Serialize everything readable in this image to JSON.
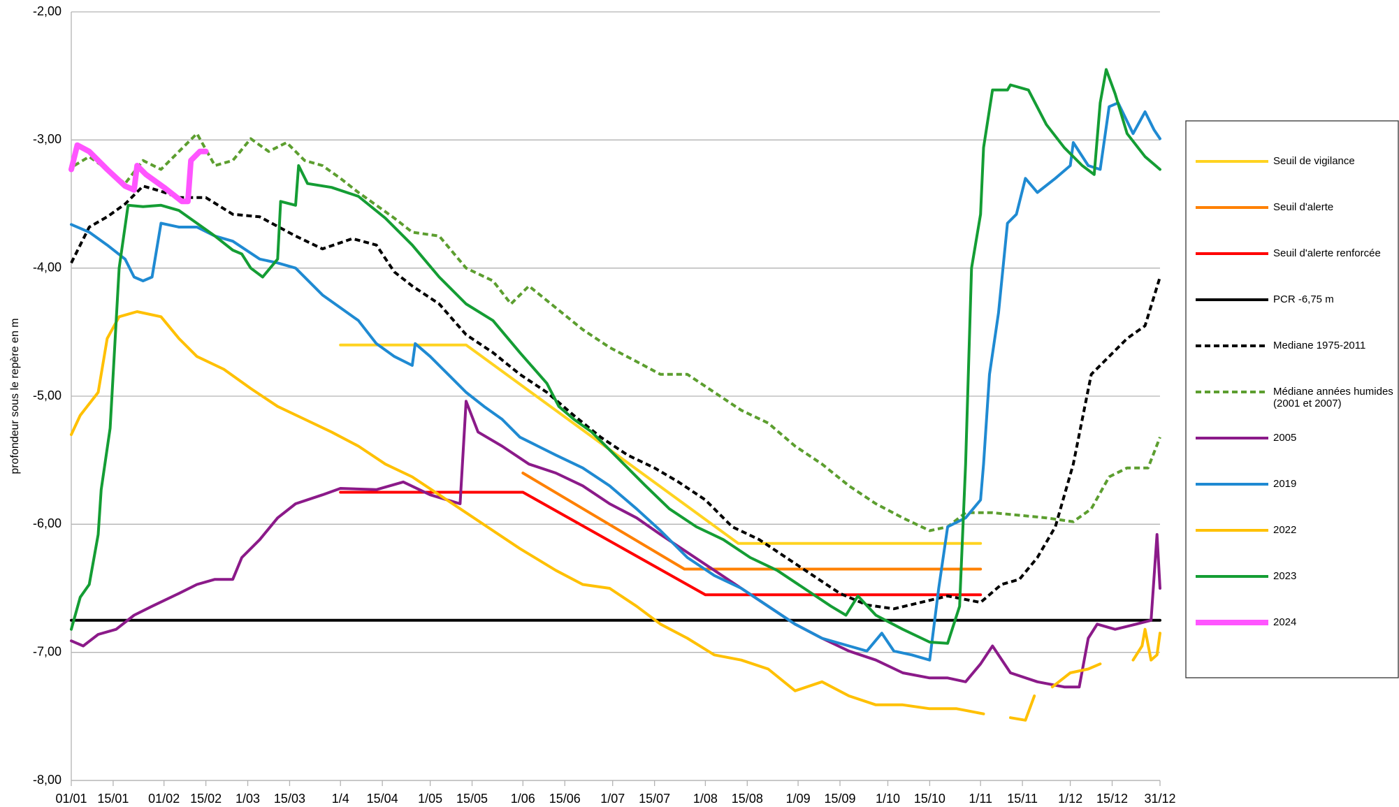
{
  "chart_data": {
    "type": "line",
    "y_label": "profondeur sous le repère en m",
    "xlim": [
      1,
      365
    ],
    "ylim": [
      -8,
      -2
    ],
    "grid": true,
    "legend": "right",
    "yticks": [
      {
        "value": -2,
        "label": "-2,00"
      },
      {
        "value": -3,
        "label": "-3,00"
      },
      {
        "value": -4,
        "label": "-4,00"
      },
      {
        "value": -5,
        "label": "-5,00"
      },
      {
        "value": -6,
        "label": "-6,00"
      },
      {
        "value": -7,
        "label": "-7,00"
      },
      {
        "value": -8,
        "label": "-8,00"
      }
    ],
    "xticks": [
      {
        "value": 1,
        "label": "01/01"
      },
      {
        "value": 15,
        "label": "15/01"
      },
      {
        "value": 32,
        "label": "01/02"
      },
      {
        "value": 46,
        "label": "15/02"
      },
      {
        "value": 60,
        "label": "1/03"
      },
      {
        "value": 74,
        "label": "15/03"
      },
      {
        "value": 91,
        "label": "1/4"
      },
      {
        "value": 105,
        "label": "15/04"
      },
      {
        "value": 121,
        "label": "1/05"
      },
      {
        "value": 135,
        "label": "15/05"
      },
      {
        "value": 152,
        "label": "1/06"
      },
      {
        "value": 166,
        "label": "15/06"
      },
      {
        "value": 182,
        "label": "1/07"
      },
      {
        "value": 196,
        "label": "15/07"
      },
      {
        "value": 213,
        "label": "1/08"
      },
      {
        "value": 227,
        "label": "15/08"
      },
      {
        "value": 244,
        "label": "1/09"
      },
      {
        "value": 258,
        "label": "15/09"
      },
      {
        "value": 274,
        "label": "1/10"
      },
      {
        "value": 288,
        "label": "15/10"
      },
      {
        "value": 305,
        "label": "1/11"
      },
      {
        "value": 319,
        "label": "15/11"
      },
      {
        "value": 335,
        "label": "1/12"
      },
      {
        "value": 349,
        "label": "15/12"
      },
      {
        "value": 365,
        "label": "31/12"
      }
    ],
    "series": [
      {
        "name": "Seuil de vigilance",
        "color": "#ffd320",
        "dashed": false,
        "line_width": 4,
        "x": [
          91,
          133,
          224,
          305
        ],
        "values": [
          -4.6,
          -4.6,
          -6.15,
          -6.15
        ]
      },
      {
        "name": "Seuil d'alerte",
        "color": "#ff8000",
        "dashed": false,
        "line_width": 4,
        "x": [
          152,
          206,
          305
        ],
        "values": [
          -5.6,
          -6.35,
          -6.35
        ]
      },
      {
        "name": "Seuil d'alerte renforcée",
        "color": "#ff0000",
        "dashed": false,
        "line_width": 4,
        "x": [
          91,
          152,
          213,
          305
        ],
        "values": [
          -5.75,
          -5.75,
          -6.55,
          -6.55
        ]
      },
      {
        "name": "PCR -6,75 m",
        "color": "#000000",
        "dashed": false,
        "line_width": 4,
        "x": [
          1,
          365
        ],
        "values": [
          -6.75,
          -6.75
        ]
      },
      {
        "name": "Mediane 1975-2011",
        "color": "#000000",
        "dashed": true,
        "line_width": 4,
        "x": [
          1,
          7,
          13,
          19,
          25,
          31,
          37,
          46,
          55,
          64,
          76,
          85,
          95,
          103,
          109,
          115,
          124,
          133,
          142,
          151,
          160,
          169,
          178,
          187,
          196,
          204,
          213,
          222,
          231,
          240,
          249,
          258,
          267,
          276,
          285,
          294,
          305,
          312,
          318,
          324,
          330,
          336,
          342,
          348,
          354,
          360,
          365
        ],
        "values": [
          -3.96,
          -3.68,
          -3.6,
          -3.5,
          -3.36,
          -3.4,
          -3.45,
          -3.45,
          -3.58,
          -3.6,
          -3.75,
          -3.85,
          -3.77,
          -3.82,
          -4.03,
          -4.14,
          -4.28,
          -4.52,
          -4.66,
          -4.83,
          -4.97,
          -5.15,
          -5.32,
          -5.46,
          -5.56,
          -5.67,
          -5.81,
          -6.02,
          -6.12,
          -6.26,
          -6.4,
          -6.54,
          -6.63,
          -6.66,
          -6.61,
          -6.56,
          -6.61,
          -6.47,
          -6.43,
          -6.26,
          -6.02,
          -5.53,
          -4.83,
          -4.69,
          -4.55,
          -4.45,
          -4.07
        ]
      },
      {
        "name": "Médiane années humides (2001 et 2007)",
        "color": "#5c9e2f",
        "dashed": true,
        "line_width": 4,
        "x": [
          2,
          7,
          13,
          19,
          25,
          31,
          37,
          43,
          49,
          55,
          61,
          67,
          73,
          79,
          85,
          91,
          97,
          103,
          109,
          115,
          124,
          133,
          142,
          148,
          154,
          163,
          172,
          181,
          190,
          198,
          207,
          216,
          225,
          234,
          243,
          252,
          261,
          270,
          279,
          288,
          294,
          300,
          309,
          318,
          327,
          336,
          342,
          348,
          354,
          361,
          365
        ],
        "values": [
          -3.2,
          -3.13,
          -3.23,
          -3.34,
          -3.16,
          -3.23,
          -3.09,
          -2.95,
          -3.2,
          -3.16,
          -2.99,
          -3.09,
          -3.02,
          -3.16,
          -3.2,
          -3.3,
          -3.41,
          -3.51,
          -3.61,
          -3.72,
          -3.75,
          -4.0,
          -4.1,
          -4.28,
          -4.14,
          -4.31,
          -4.48,
          -4.62,
          -4.73,
          -4.83,
          -4.83,
          -4.97,
          -5.11,
          -5.21,
          -5.39,
          -5.53,
          -5.7,
          -5.84,
          -5.95,
          -6.05,
          -6.02,
          -5.91,
          -5.91,
          -5.93,
          -5.95,
          -5.98,
          -5.88,
          -5.63,
          -5.56,
          -5.56,
          -5.32
        ]
      },
      {
        "name": "2005",
        "color": "#8b1a89",
        "dashed": false,
        "line_width": 4,
        "x": [
          1,
          5,
          10,
          16,
          22,
          28,
          37,
          43,
          49,
          55,
          58,
          64,
          70,
          76,
          85,
          91,
          103,
          112,
          121,
          131,
          133,
          137,
          145,
          154,
          163,
          172,
          181,
          190,
          198,
          207,
          216,
          225,
          234,
          243,
          252,
          261,
          270,
          279,
          288,
          294,
          300,
          305,
          309,
          315,
          324,
          333,
          338,
          341,
          344,
          350,
          357,
          362,
          364,
          365
        ],
        "values": [
          -6.91,
          -6.95,
          -6.86,
          -6.82,
          -6.71,
          -6.64,
          -6.54,
          -6.47,
          -6.43,
          -6.43,
          -6.26,
          -6.12,
          -5.95,
          -5.84,
          -5.77,
          -5.72,
          -5.73,
          -5.67,
          -5.77,
          -5.84,
          -5.04,
          -5.28,
          -5.39,
          -5.53,
          -5.6,
          -5.7,
          -5.84,
          -5.95,
          -6.08,
          -6.22,
          -6.36,
          -6.5,
          -6.64,
          -6.78,
          -6.89,
          -6.99,
          -7.06,
          -7.16,
          -7.2,
          -7.2,
          -7.23,
          -7.09,
          -6.95,
          -7.16,
          -7.23,
          -7.27,
          -7.27,
          -6.89,
          -6.78,
          -6.82,
          -6.78,
          -6.75,
          -6.08,
          -6.5
        ]
      },
      {
        "name": "2019",
        "color": "#1f8ad2",
        "dashed": false,
        "line_width": 4,
        "x": [
          1,
          7,
          13,
          19,
          22,
          25,
          28,
          31,
          37,
          43,
          49,
          55,
          64,
          70,
          76,
          85,
          91,
          97,
          103,
          109,
          115,
          116,
          121,
          127,
          133,
          139,
          145,
          151,
          157,
          163,
          172,
          181,
          190,
          198,
          207,
          216,
          225,
          234,
          243,
          252,
          261,
          267,
          272,
          276,
          282,
          288,
          291,
          294,
          300,
          305,
          306,
          308,
          311,
          314,
          317,
          320,
          324,
          330,
          335,
          336,
          341,
          345,
          348,
          351,
          356,
          360,
          363,
          365
        ],
        "values": [
          -3.66,
          -3.72,
          -3.82,
          -3.93,
          -4.07,
          -4.1,
          -4.07,
          -3.65,
          -3.68,
          -3.68,
          -3.75,
          -3.79,
          -3.93,
          -3.96,
          -4.0,
          -4.21,
          -4.31,
          -4.41,
          -4.59,
          -4.69,
          -4.76,
          -4.59,
          -4.69,
          -4.83,
          -4.97,
          -5.08,
          -5.18,
          -5.32,
          -5.39,
          -5.46,
          -5.56,
          -5.7,
          -5.88,
          -6.05,
          -6.26,
          -6.4,
          -6.5,
          -6.64,
          -6.78,
          -6.89,
          -6.95,
          -6.99,
          -6.85,
          -6.99,
          -7.02,
          -7.06,
          -6.5,
          -6.02,
          -5.95,
          -5.81,
          -5.53,
          -4.83,
          -4.35,
          -3.65,
          -3.58,
          -3.3,
          -3.41,
          -3.3,
          -3.2,
          -3.02,
          -3.2,
          -3.23,
          -2.74,
          -2.71,
          -2.95,
          -2.78,
          -2.92,
          -2.99
        ]
      },
      {
        "name": "2022",
        "color": "#ffc000",
        "dashed": false,
        "line_width": 4,
        "x": [
          1,
          4,
          10,
          13,
          17,
          23,
          31,
          37,
          43,
          52,
          61,
          70,
          79,
          88,
          97,
          106,
          115,
          124,
          133,
          142,
          151,
          163,
          172,
          181,
          190,
          198,
          207,
          216,
          225,
          234,
          243,
          252,
          261,
          270,
          279,
          288,
          297,
          306,
          311,
          315,
          320,
          323,
          326,
          329,
          335,
          341,
          345,
          350,
          356,
          359,
          360,
          362,
          364,
          365
        ],
        "values": [
          -5.3,
          -5.15,
          -4.97,
          -4.55,
          -4.38,
          -4.34,
          -4.38,
          -4.55,
          -4.69,
          -4.79,
          -4.94,
          -5.08,
          -5.18,
          -5.28,
          -5.39,
          -5.53,
          -5.63,
          -5.77,
          -5.91,
          -6.05,
          -6.19,
          -6.36,
          -6.47,
          -6.5,
          -6.64,
          -6.78,
          -6.89,
          -7.02,
          -7.06,
          -7.13,
          -7.3,
          -7.23,
          -7.34,
          -7.41,
          -7.41,
          -7.44,
          -7.44,
          -7.48,
          null,
          -7.51,
          -7.53,
          -7.34,
          null,
          -7.27,
          -7.16,
          -7.13,
          -7.09,
          null,
          -7.06,
          -6.95,
          -6.82,
          -7.06,
          -7.02,
          -6.85
        ]
      },
      {
        "name": "2023",
        "color": "#149d34",
        "dashed": false,
        "line_width": 4,
        "x": [
          1,
          4,
          7,
          10,
          11,
          14,
          17,
          20,
          25,
          31,
          37,
          43,
          49,
          55,
          58,
          61,
          65,
          70,
          71,
          76,
          77,
          80,
          88,
          97,
          106,
          115,
          124,
          133,
          142,
          151,
          160,
          164,
          169,
          175,
          184,
          193,
          201,
          210,
          219,
          228,
          237,
          246,
          255,
          260,
          264,
          270,
          279,
          288,
          294,
          298,
          300,
          302,
          305,
          306,
          309,
          314,
          315,
          321,
          327,
          333,
          339,
          343,
          345,
          347,
          350,
          354,
          360,
          365
        ],
        "values": [
          -6.82,
          -6.57,
          -6.47,
          -6.08,
          -5.73,
          -5.25,
          -4.0,
          -3.51,
          -3.52,
          -3.51,
          -3.55,
          -3.65,
          -3.75,
          -3.86,
          -3.89,
          -4.0,
          -4.07,
          -3.93,
          -3.48,
          -3.51,
          -3.2,
          -3.34,
          -3.37,
          -3.44,
          -3.61,
          -3.82,
          -4.07,
          -4.28,
          -4.41,
          -4.66,
          -4.9,
          -5.08,
          -5.18,
          -5.28,
          -5.49,
          -5.7,
          -5.88,
          -6.02,
          -6.12,
          -6.26,
          -6.36,
          -6.5,
          -6.64,
          -6.71,
          -6.56,
          -6.71,
          -6.82,
          -6.92,
          -6.93,
          -6.64,
          -5.53,
          -4.0,
          -3.58,
          -3.06,
          -2.61,
          -2.61,
          -2.57,
          -2.61,
          -2.88,
          -3.06,
          -3.2,
          -3.27,
          -2.71,
          -2.45,
          -2.64,
          -2.95,
          -3.13,
          -3.23
        ]
      },
      {
        "name": "2024",
        "color": "#ff55ff",
        "dashed": false,
        "line_width": 8,
        "x": [
          1,
          3,
          7,
          13,
          19,
          22,
          23,
          26,
          32,
          38,
          40,
          41,
          44,
          46
        ],
        "values": [
          -3.23,
          -3.04,
          -3.09,
          -3.23,
          -3.36,
          -3.39,
          -3.2,
          -3.27,
          -3.37,
          -3.48,
          -3.48,
          -3.16,
          -3.09,
          -3.09
        ]
      }
    ]
  }
}
